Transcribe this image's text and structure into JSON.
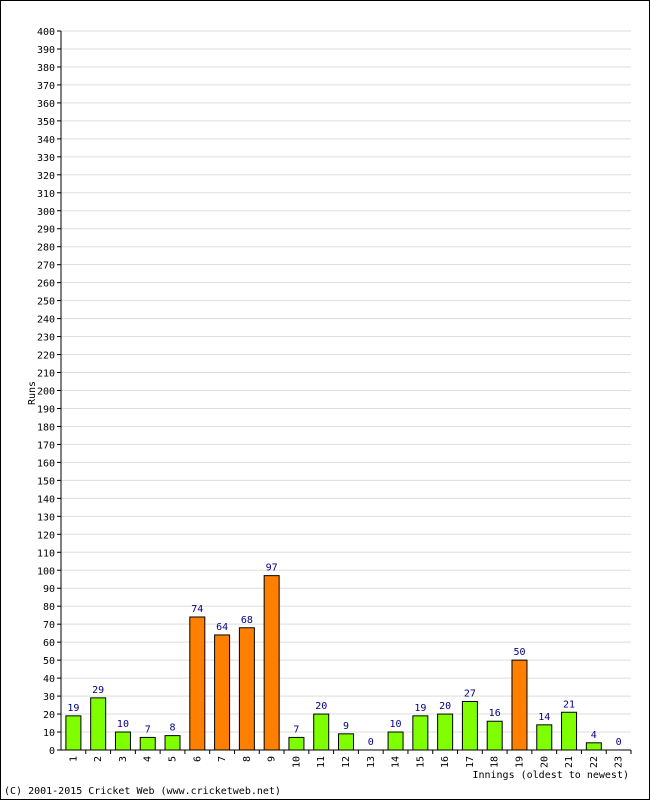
{
  "chart_data": {
    "type": "bar",
    "title": "",
    "xlabel": "Innings (oldest to newest)",
    "ylabel": "Runs",
    "ylim": [
      0,
      400
    ],
    "y_tick_step": 10,
    "grid": true,
    "categories": [
      "1",
      "2",
      "3",
      "4",
      "5",
      "6",
      "7",
      "8",
      "9",
      "10",
      "11",
      "12",
      "13",
      "14",
      "15",
      "16",
      "17",
      "18",
      "19",
      "20",
      "21",
      "22",
      "23"
    ],
    "values": [
      19,
      29,
      10,
      7,
      8,
      74,
      64,
      68,
      97,
      7,
      20,
      9,
      0,
      10,
      19,
      20,
      27,
      16,
      50,
      14,
      21,
      4,
      0
    ],
    "colors": {
      "under_50": "#80ff00",
      "fifty_plus": "#ff8000",
      "bar_stroke": "#000000",
      "value_label": "#000080",
      "grid": "#dddddd",
      "axis": "#000000"
    }
  },
  "footer": {
    "copyright": "(C) 2001-2015 Cricket Web (www.cricketweb.net)"
  }
}
